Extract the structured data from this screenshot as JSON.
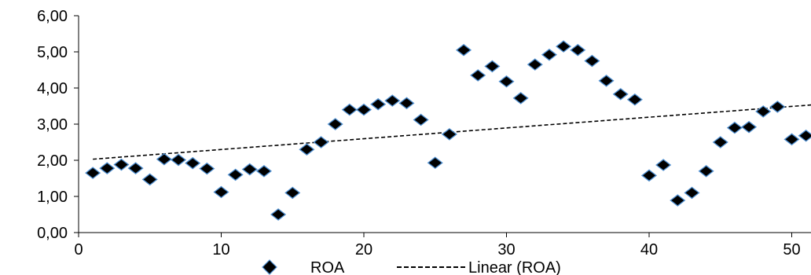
{
  "chart_data": {
    "type": "scatter",
    "x_ticks": [
      "0",
      "10",
      "20",
      "30",
      "40",
      "50"
    ],
    "y_ticks": [
      "0,00",
      "1,00",
      "2,00",
      "3,00",
      "4,00",
      "5,00",
      "6,00"
    ],
    "xlim": [
      0,
      52
    ],
    "ylim": [
      0,
      6
    ],
    "grid": false,
    "legend_position": "bottom",
    "series": [
      {
        "name": "ROA",
        "marker": "diamond",
        "color": "#000000",
        "edge_color": "#4f8fd0",
        "x": [
          1,
          2,
          3,
          4,
          5,
          6,
          7,
          8,
          9,
          10,
          11,
          12,
          13,
          14,
          15,
          16,
          17,
          18,
          19,
          20,
          21,
          22,
          23,
          24,
          25,
          26,
          27,
          28,
          29,
          30,
          31,
          32,
          33,
          34,
          35,
          36,
          37,
          38,
          39,
          40,
          41,
          42,
          43,
          44,
          45,
          46,
          47,
          48,
          49,
          50,
          51,
          52
        ],
        "y": [
          1.65,
          1.78,
          1.88,
          1.78,
          1.47,
          2.03,
          2.01,
          1.92,
          1.77,
          1.12,
          1.6,
          1.75,
          1.7,
          0.5,
          1.1,
          2.3,
          2.5,
          3.0,
          3.4,
          3.4,
          3.55,
          3.65,
          3.58,
          3.12,
          1.93,
          2.72,
          5.05,
          4.35,
          4.6,
          4.18,
          3.72,
          4.65,
          4.92,
          5.15,
          5.05,
          4.75,
          4.2,
          3.83,
          3.68,
          1.58,
          1.87,
          0.89,
          1.1,
          1.7,
          2.5,
          2.9,
          2.92,
          3.35,
          3.48,
          2.58,
          2.68,
          2.7
        ]
      }
    ],
    "trendline": {
      "name": "Linear (ROA)",
      "style": "dashed",
      "color": "#000000",
      "y_start": 2.03,
      "y_end": 3.55
    }
  }
}
